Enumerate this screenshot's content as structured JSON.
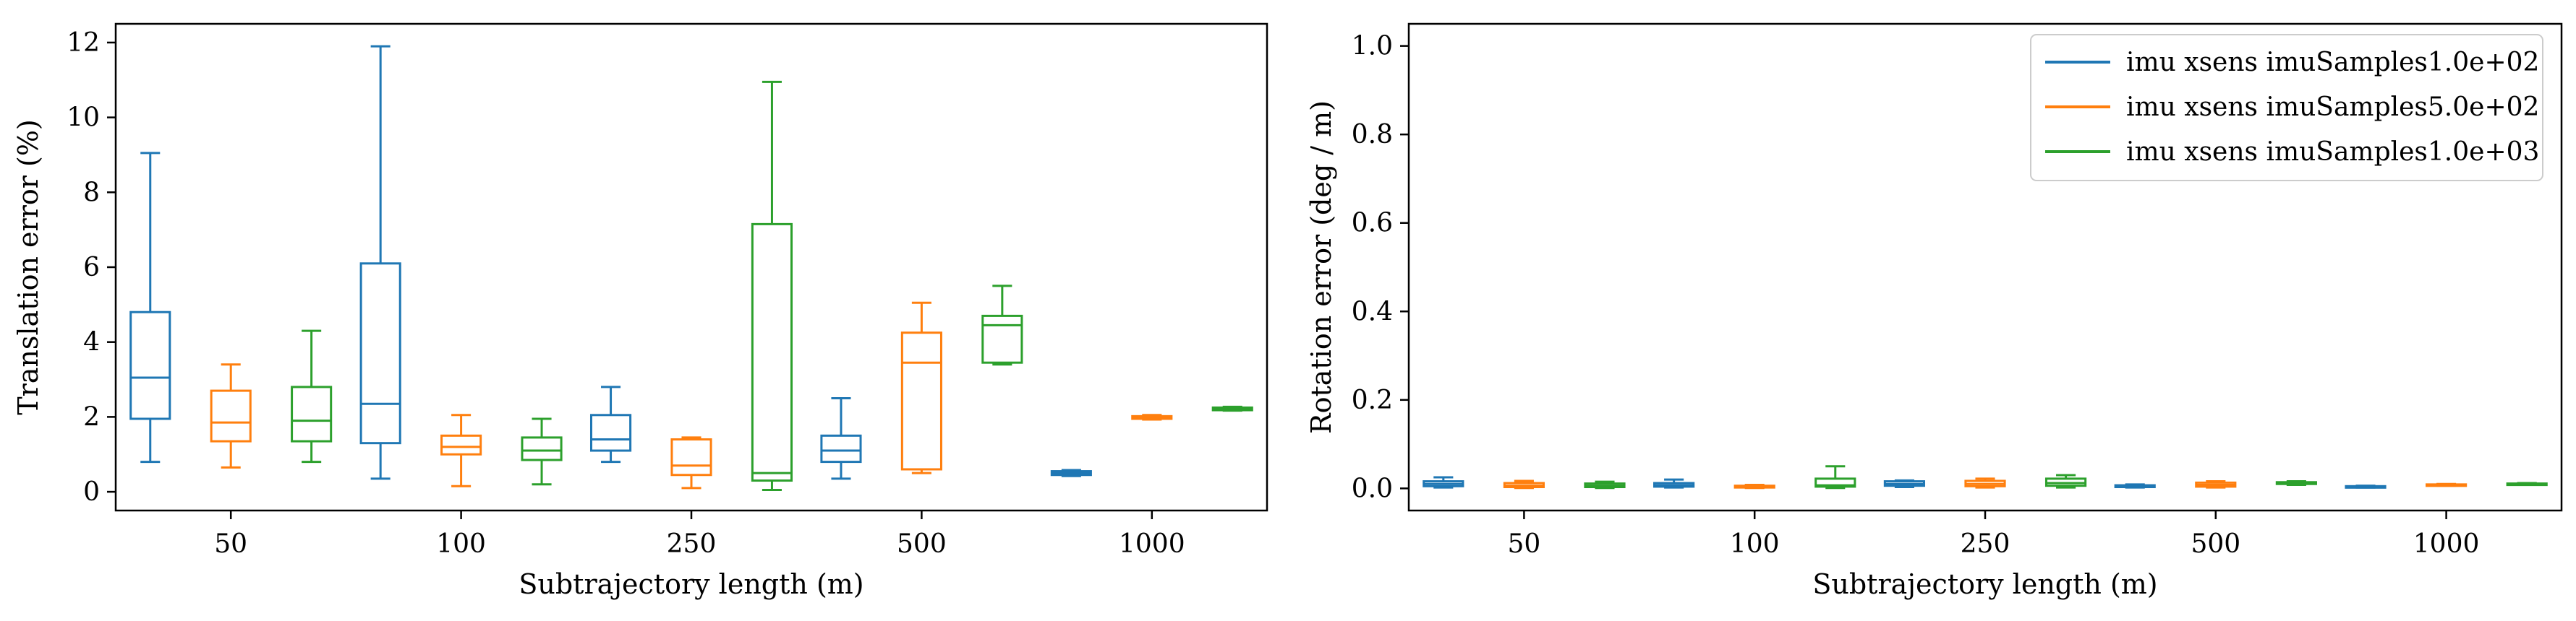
{
  "colors": {
    "series1": "#1f77b4",
    "series2": "#ff7f0e",
    "series3": "#2ca02c",
    "axis": "#000000",
    "background": "#ffffff"
  },
  "legend": {
    "placement": "top-right of right panel",
    "entries": [
      "imu xsens imuSamples1.0e+02",
      "imu xsens imuSamples5.0e+02",
      "imu xsens imuSamples1.0e+03"
    ]
  },
  "chart_data": [
    {
      "type": "boxplot",
      "xlabel": "Subtrajectory length (m)",
      "ylabel": "Translation error (%)",
      "ylim": [
        -0.5,
        12.5
      ],
      "yticks": [
        0,
        2,
        4,
        6,
        8,
        10,
        12
      ],
      "categories": [
        "50",
        "100",
        "250",
        "500",
        "1000"
      ],
      "grid": false,
      "series": [
        {
          "name": "imu xsens imuSamples1.0e+02",
          "color_key": "series1",
          "boxes": [
            {
              "whislo": 0.8,
              "q1": 1.95,
              "med": 3.05,
              "q3": 4.8,
              "whishi": 9.05
            },
            {
              "whislo": 0.35,
              "q1": 1.3,
              "med": 2.35,
              "q3": 6.1,
              "whishi": 11.9
            },
            {
              "whislo": 0.8,
              "q1": 1.1,
              "med": 1.4,
              "q3": 2.05,
              "whishi": 2.8
            },
            {
              "whislo": 0.35,
              "q1": 0.8,
              "med": 1.1,
              "q3": 1.5,
              "whishi": 2.5
            },
            {
              "whislo": 0.42,
              "q1": 0.45,
              "med": 0.5,
              "q3": 0.55,
              "whishi": 0.58
            }
          ]
        },
        {
          "name": "imu xsens imuSamples5.0e+02",
          "color_key": "series2",
          "boxes": [
            {
              "whislo": 0.65,
              "q1": 1.35,
              "med": 1.85,
              "q3": 2.7,
              "whishi": 3.4
            },
            {
              "whislo": 0.15,
              "q1": 1.0,
              "med": 1.2,
              "q3": 1.5,
              "whishi": 2.05
            },
            {
              "whislo": 0.1,
              "q1": 0.45,
              "med": 0.7,
              "q3": 1.4,
              "whishi": 1.45
            },
            {
              "whislo": 0.5,
              "q1": 0.6,
              "med": 3.45,
              "q3": 4.25,
              "whishi": 5.05
            },
            {
              "whislo": 1.93,
              "q1": 1.95,
              "med": 1.98,
              "q3": 2.02,
              "whishi": 2.05
            }
          ]
        },
        {
          "name": "imu xsens imuSamples1.0e+03",
          "color_key": "series3",
          "boxes": [
            {
              "whislo": 0.8,
              "q1": 1.35,
              "med": 1.9,
              "q3": 2.8,
              "whishi": 4.3
            },
            {
              "whislo": 0.2,
              "q1": 0.85,
              "med": 1.1,
              "q3": 1.45,
              "whishi": 1.95
            },
            {
              "whislo": 0.05,
              "q1": 0.3,
              "med": 0.5,
              "q3": 7.15,
              "whishi": 10.95
            },
            {
              "whislo": 3.4,
              "q1": 3.45,
              "med": 4.45,
              "q3": 4.7,
              "whishi": 5.5
            },
            {
              "whislo": 2.17,
              "q1": 2.18,
              "med": 2.22,
              "q3": 2.25,
              "whishi": 2.27
            }
          ]
        }
      ]
    },
    {
      "type": "boxplot",
      "xlabel": "Subtrajectory length (m)",
      "ylabel": "Rotation error (deg / m)",
      "ylim": [
        -0.05,
        1.05
      ],
      "yticks": [
        0.0,
        0.2,
        0.4,
        0.6,
        0.8,
        1.0
      ],
      "yticklabels": [
        "0.0",
        "0.2",
        "0.4",
        "0.6",
        "0.8",
        "1.0"
      ],
      "categories": [
        "50",
        "100",
        "250",
        "500",
        "1000"
      ],
      "grid": false,
      "series": [
        {
          "name": "imu xsens imuSamples1.0e+02",
          "color_key": "series1",
          "boxes": [
            {
              "whislo": 0.002,
              "q1": 0.005,
              "med": 0.01,
              "q3": 0.016,
              "whishi": 0.025
            },
            {
              "whislo": 0.002,
              "q1": 0.004,
              "med": 0.007,
              "q3": 0.012,
              "whishi": 0.02
            },
            {
              "whislo": 0.003,
              "q1": 0.006,
              "med": 0.01,
              "q3": 0.016,
              "whishi": 0.018
            },
            {
              "whislo": 0.002,
              "q1": 0.003,
              "med": 0.005,
              "q3": 0.007,
              "whishi": 0.009
            },
            {
              "whislo": 0.002,
              "q1": 0.003,
              "med": 0.004,
              "q3": 0.005,
              "whishi": 0.006
            }
          ]
        },
        {
          "name": "imu xsens imuSamples5.0e+02",
          "color_key": "series2",
          "boxes": [
            {
              "whislo": 0.001,
              "q1": 0.003,
              "med": 0.006,
              "q3": 0.012,
              "whishi": 0.017
            },
            {
              "whislo": 0.001,
              "q1": 0.002,
              "med": 0.004,
              "q3": 0.006,
              "whishi": 0.008
            },
            {
              "whislo": 0.002,
              "q1": 0.005,
              "med": 0.01,
              "q3": 0.017,
              "whishi": 0.022
            },
            {
              "whislo": 0.002,
              "q1": 0.004,
              "med": 0.008,
              "q3": 0.013,
              "whishi": 0.016
            },
            {
              "whislo": 0.006,
              "q1": 0.007,
              "med": 0.008,
              "q3": 0.009,
              "whishi": 0.01
            }
          ]
        },
        {
          "name": "imu xsens imuSamples1.0e+03",
          "color_key": "series3",
          "boxes": [
            {
              "whislo": 0.001,
              "q1": 0.003,
              "med": 0.006,
              "q3": 0.011,
              "whishi": 0.015
            },
            {
              "whislo": 0.001,
              "q1": 0.004,
              "med": 0.007,
              "q3": 0.022,
              "whishi": 0.05
            },
            {
              "whislo": 0.002,
              "q1": 0.006,
              "med": 0.012,
              "q3": 0.022,
              "whishi": 0.03
            },
            {
              "whislo": 0.008,
              "q1": 0.01,
              "med": 0.012,
              "q3": 0.014,
              "whishi": 0.016
            },
            {
              "whislo": 0.008,
              "q1": 0.009,
              "med": 0.01,
              "q3": 0.011,
              "whishi": 0.012
            }
          ]
        }
      ]
    }
  ]
}
